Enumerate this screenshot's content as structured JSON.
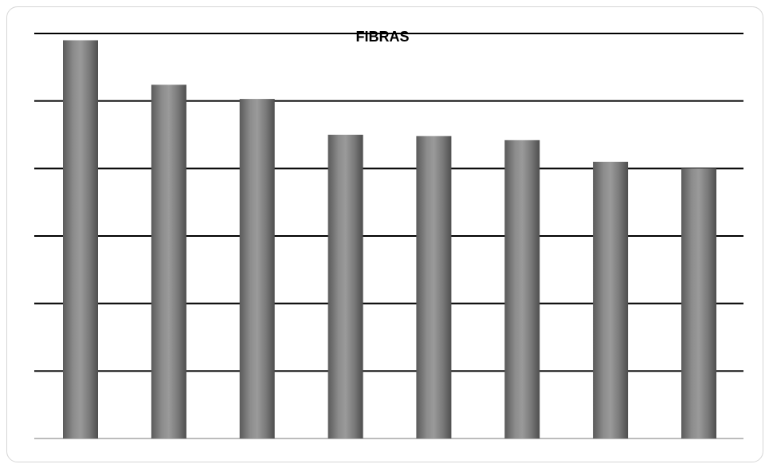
{
  "chart_data": {
    "type": "bar",
    "title": "FIBRAS",
    "xlabel": "",
    "ylabel": "",
    "categories": [
      "",
      "",
      "",
      "",
      "",
      "",
      "",
      ""
    ],
    "values": [
      5.9,
      5.24,
      5.03,
      4.5,
      4.48,
      4.42,
      4.1,
      4.0
    ],
    "ylim": [
      0,
      6
    ],
    "gridlines": [
      0,
      1,
      2,
      3,
      4,
      5,
      6
    ],
    "grid": true,
    "legend": "none",
    "bar_color": "#7a7a7a",
    "grid_color": "#000000",
    "baseline_color": "#a6a6a6"
  }
}
